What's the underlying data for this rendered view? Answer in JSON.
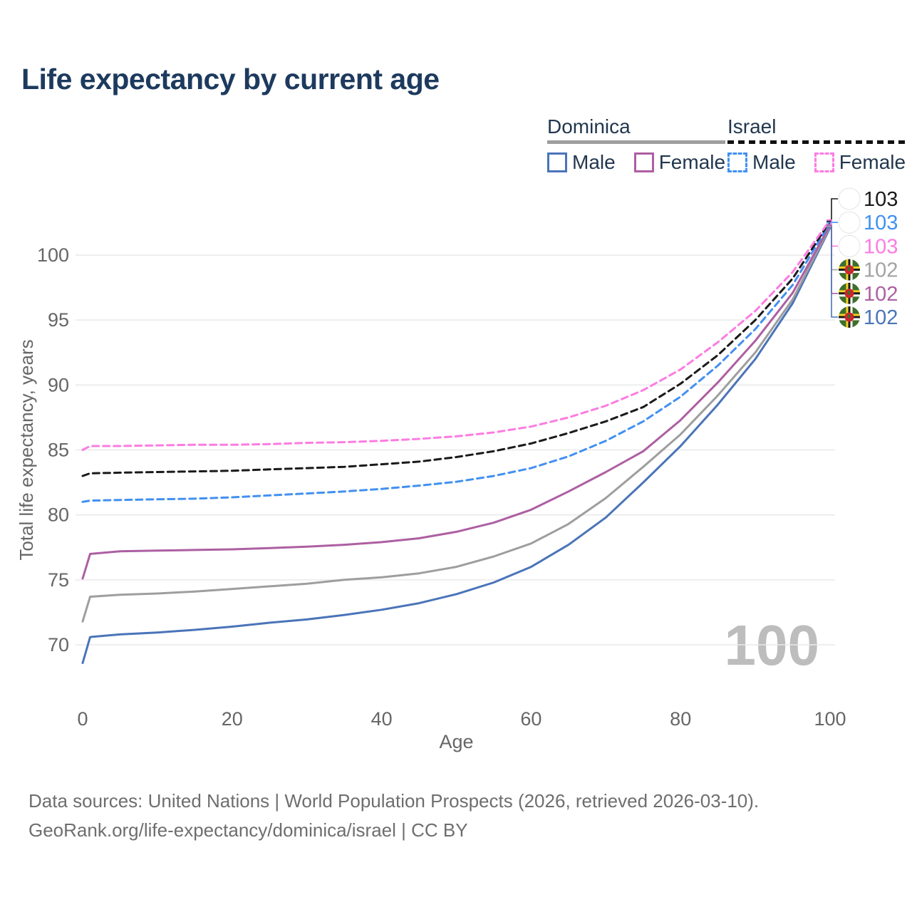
{
  "title": "Life expectancy by current age",
  "watermark": "100",
  "footer": {
    "line1": "Data sources: United Nations | World Population Prospects (2026, retrieved 2026-03-10).",
    "line2": "GeoRank.org/life-expectancy/dominica/israel | CC BY"
  },
  "legend": {
    "groups": [
      {
        "name": "Dominica",
        "style": "solid",
        "color": "#9e9e9e",
        "items": [
          {
            "label": "Male",
            "color": "#4a74b9",
            "dash": "solid"
          },
          {
            "label": "Female",
            "color": "#ad5fa2",
            "dash": "solid"
          }
        ]
      },
      {
        "name": "Israel",
        "style": "dashed",
        "color": "#111111",
        "items": [
          {
            "label": "Male",
            "color": "#4290f0",
            "dash": "dashed"
          },
          {
            "label": "Female",
            "color": "#fb7ce2",
            "dash": "dashed"
          }
        ]
      }
    ]
  },
  "chart_data": {
    "type": "line",
    "title": "Life expectancy by current age",
    "xlabel": "Age",
    "ylabel": "Total life expectancy, years",
    "xlim": [
      0,
      100
    ],
    "ylim": [
      67,
      104
    ],
    "xticks": [
      0,
      20,
      40,
      60,
      80,
      100
    ],
    "yticks": [
      70,
      75,
      80,
      85,
      90,
      95,
      100
    ],
    "grid": true,
    "legend_position": "top-right",
    "x": [
      0,
      1,
      5,
      10,
      15,
      20,
      25,
      30,
      35,
      40,
      45,
      50,
      55,
      60,
      65,
      70,
      75,
      80,
      85,
      90,
      95,
      100
    ],
    "series": [
      {
        "id": "dominica-male",
        "name": "Dominica Male",
        "country": "Dominica",
        "sex": "Male",
        "color": "#4a74b9",
        "dash": "solid",
        "values": [
          68.6,
          70.6,
          70.8,
          70.95,
          71.15,
          71.4,
          71.7,
          71.95,
          72.3,
          72.7,
          73.2,
          73.9,
          74.8,
          76.0,
          77.7,
          79.8,
          82.5,
          85.3,
          88.5,
          92.0,
          96.3,
          102.1
        ]
      },
      {
        "id": "dominica-total",
        "name": "Dominica Total",
        "country": "Dominica",
        "sex": "Both",
        "color": "#9e9e9e",
        "dash": "solid",
        "values": [
          71.8,
          73.7,
          73.85,
          73.95,
          74.1,
          74.3,
          74.5,
          74.7,
          75.0,
          75.2,
          75.5,
          76.0,
          76.8,
          77.8,
          79.3,
          81.3,
          83.7,
          86.2,
          89.2,
          92.5,
          96.6,
          102.2
        ]
      },
      {
        "id": "dominica-female",
        "name": "Dominica Female",
        "country": "Dominica",
        "sex": "Female",
        "color": "#ad5fa2",
        "dash": "solid",
        "values": [
          75.1,
          77.0,
          77.2,
          77.25,
          77.3,
          77.35,
          77.45,
          77.55,
          77.7,
          77.9,
          78.2,
          78.7,
          79.4,
          80.4,
          81.8,
          83.3,
          84.9,
          87.3,
          90.2,
          93.4,
          97.1,
          102.3
        ]
      },
      {
        "id": "israel-male",
        "name": "Israel Male",
        "country": "Israel",
        "sex": "Male",
        "color": "#4290f0",
        "dash": "dashed",
        "values": [
          81.0,
          81.1,
          81.15,
          81.2,
          81.25,
          81.35,
          81.5,
          81.65,
          81.8,
          82.0,
          82.25,
          82.55,
          83.0,
          83.6,
          84.5,
          85.7,
          87.2,
          89.1,
          91.5,
          94.3,
          97.7,
          102.5
        ]
      },
      {
        "id": "israel-total",
        "name": "Israel Total",
        "country": "Israel",
        "sex": "Both",
        "color": "#1a1a1a",
        "dash": "dashed",
        "values": [
          83.0,
          83.2,
          83.25,
          83.3,
          83.35,
          83.4,
          83.5,
          83.6,
          83.7,
          83.9,
          84.1,
          84.45,
          84.9,
          85.5,
          86.3,
          87.2,
          88.3,
          90.1,
          92.3,
          95.0,
          98.2,
          102.6
        ]
      },
      {
        "id": "israel-female",
        "name": "Israel Female",
        "country": "Israel",
        "sex": "Female",
        "color": "#fb7ce2",
        "dash": "dashed",
        "values": [
          85.0,
          85.3,
          85.3,
          85.35,
          85.4,
          85.4,
          85.45,
          85.55,
          85.6,
          85.7,
          85.85,
          86.05,
          86.35,
          86.8,
          87.5,
          88.4,
          89.6,
          91.2,
          93.3,
          95.7,
          98.7,
          102.7
        ]
      }
    ],
    "value_labels": [
      {
        "series": "israel-total",
        "text": "103",
        "flag": "israel",
        "color": "#1a1a1a"
      },
      {
        "series": "israel-male",
        "text": "103",
        "flag": "israel",
        "color": "#4290f0"
      },
      {
        "series": "israel-female",
        "text": "103",
        "flag": "israel",
        "color": "#fb7ce2"
      },
      {
        "series": "dominica-total",
        "text": "102",
        "flag": "dominica",
        "color": "#a3a3a3"
      },
      {
        "series": "dominica-female",
        "text": "102",
        "flag": "dominica",
        "color": "#ad5fa2"
      },
      {
        "series": "dominica-male",
        "text": "102",
        "flag": "dominica",
        "color": "#4a74b9"
      }
    ],
    "flag_colors": {
      "israel_blue": "#2446ba",
      "dominica_green": "#3f6f2a",
      "dominica_yellow": "#f5d323",
      "dominica_black": "#1a1a1a",
      "dominica_white": "#ffffff",
      "dominica_red": "#d0232e"
    }
  }
}
